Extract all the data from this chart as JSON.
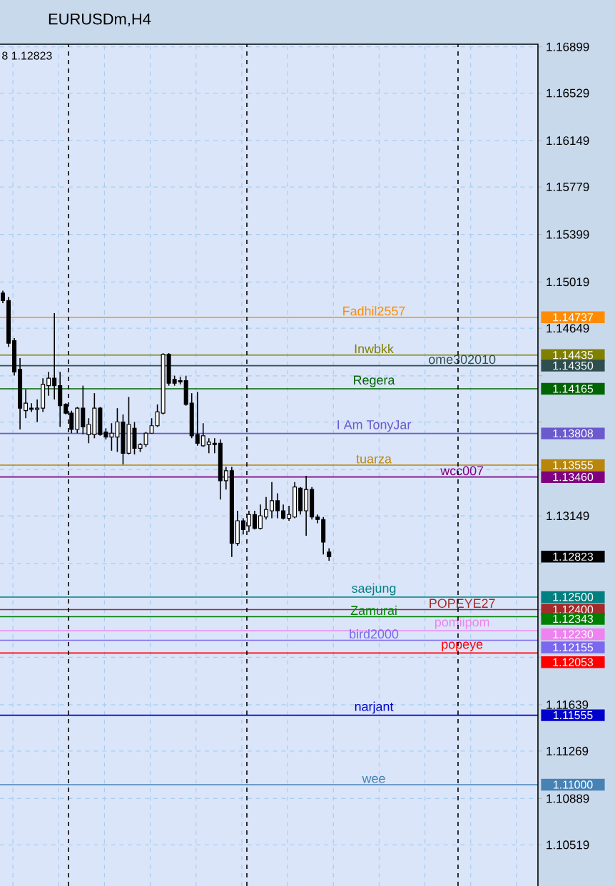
{
  "chart_data": {
    "type": "candlestick",
    "title": "EURUSDm,H4",
    "color": "#000000",
    "categories": [
      null,
      null,
      null,
      null,
      null,
      null,
      null,
      null,
      null,
      null,
      null,
      null,
      null,
      null,
      null,
      null,
      null,
      null,
      null,
      null,
      null,
      null,
      null,
      null,
      null,
      null,
      null,
      null,
      null,
      null,
      null,
      null,
      null,
      null,
      null,
      null,
      null,
      null,
      null,
      null,
      null,
      null,
      null,
      null,
      null,
      null,
      null,
      null,
      null,
      null,
      null,
      null,
      null,
      null,
      null,
      null,
      null,
      null,
      null,
      null,
      null,
      null,
      null,
      null,
      null,
      null,
      null,
      null,
      null,
      null,
      null,
      null,
      null,
      null,
      null,
      null,
      null,
      null,
      null,
      null,
      null,
      null,
      null,
      null,
      null,
      null,
      null,
      null,
      null,
      null,
      null,
      null,
      null,
      null
    ],
    "ohlc": [
      [
        1.1493,
        1.1495,
        1.1485,
        1.1487
      ],
      [
        1.1487,
        1.149,
        1.145,
        1.1453
      ],
      [
        1.1455,
        1.1457,
        1.1427,
        1.143
      ],
      [
        1.1432,
        1.1441,
        1.1384,
        1.1401
      ],
      [
        1.1399,
        1.1416,
        1.1393,
        1.1405
      ],
      [
        1.1401,
        1.1405,
        1.1398,
        1.14
      ],
      [
        1.14,
        1.1408,
        1.139,
        1.1401
      ],
      [
        1.1401,
        1.1425,
        1.1398,
        1.142
      ],
      [
        1.1419,
        1.143,
        1.1411,
        1.1425
      ],
      [
        1.1425,
        1.1477,
        1.1408,
        1.1419
      ],
      [
        1.1419,
        1.143,
        1.1386,
        1.1403
      ],
      [
        1.1404,
        1.1405,
        1.1396,
        1.1397
      ],
      [
        1.1397,
        1.1399,
        1.1381,
        1.1384
      ],
      [
        1.1384,
        1.1402,
        1.1381,
        1.1401
      ],
      [
        1.1401,
        1.1419,
        1.138,
        1.1386
      ],
      [
        1.138,
        1.1393,
        1.1373,
        1.1388
      ],
      [
        1.138,
        1.1413,
        1.1377,
        1.1401
      ],
      [
        1.1401,
        1.1402,
        1.1379,
        1.138
      ],
      [
        1.1382,
        1.1385,
        1.1376,
        1.1378
      ],
      [
        1.1378,
        1.1389,
        1.1367,
        1.1381
      ],
      [
        1.1378,
        1.1401,
        1.1366,
        1.139
      ],
      [
        1.139,
        1.1396,
        1.1356,
        1.1365
      ],
      [
        1.1365,
        1.141,
        1.1364,
        1.1388
      ],
      [
        1.1385,
        1.139,
        1.1364,
        1.1369
      ],
      [
        1.1369,
        1.1373,
        1.1366,
        1.1372
      ],
      [
        1.1372,
        1.1382,
        1.137,
        1.1381
      ],
      [
        1.1381,
        1.1393,
        1.1381,
        1.1387
      ],
      [
        1.1387,
        1.1404,
        1.1386,
        1.1398
      ],
      [
        1.1397,
        1.1445,
        1.1396,
        1.1444
      ],
      [
        1.1444,
        1.1445,
        1.1419,
        1.1421
      ],
      [
        1.1424,
        1.1427,
        1.1419,
        1.1421
      ],
      [
        1.1423,
        1.1426,
        1.142,
        1.1422
      ],
      [
        1.1423,
        1.1427,
        1.1403,
        1.1404
      ],
      [
        1.1405,
        1.1413,
        1.1377,
        1.1379
      ],
      [
        1.138,
        1.1414,
        1.1371,
        1.1373
      ],
      [
        1.1371,
        1.1389,
        1.137,
        1.1379
      ],
      [
        1.1372,
        1.1377,
        1.1365,
        1.1374
      ],
      [
        1.1373,
        1.1377,
        1.1365,
        1.1372
      ],
      [
        1.1373,
        1.1376,
        1.1328,
        1.1343
      ],
      [
        1.1343,
        1.1354,
        1.1336,
        1.1351
      ],
      [
        1.1351,
        1.1354,
        1.1282,
        1.1293
      ],
      [
        1.1293,
        1.1319,
        1.1291,
        1.1311
      ],
      [
        1.1311,
        1.1313,
        1.13,
        1.1304
      ],
      [
        1.1307,
        1.1319,
        1.1302,
        1.1316
      ],
      [
        1.1316,
        1.1319,
        1.1304,
        1.1305
      ],
      [
        1.1305,
        1.1324,
        1.1304,
        1.1315
      ],
      [
        1.1314,
        1.133,
        1.1312,
        1.132
      ],
      [
        1.1319,
        1.1342,
        1.1313,
        1.1327
      ],
      [
        1.1327,
        1.1333,
        1.1313,
        1.1319
      ],
      [
        1.1319,
        1.1324,
        1.1312,
        1.1313
      ],
      [
        1.1313,
        1.1323,
        1.1311,
        1.1316
      ],
      [
        1.1314,
        1.1342,
        1.1313,
        1.1338
      ],
      [
        1.1337,
        1.1338,
        1.1316,
        1.1319
      ],
      [
        1.1319,
        1.1347,
        1.1299,
        1.1336
      ],
      [
        1.1336,
        1.1338,
        1.1312,
        1.1314
      ],
      [
        1.1314,
        1.1316,
        1.1309,
        1.1312
      ],
      [
        1.1312,
        1.1314,
        1.1284,
        1.1294
      ],
      [
        1.1286,
        1.1289,
        1.1279,
        1.12823
      ],
      null,
      null,
      null,
      null,
      null,
      null,
      null,
      null,
      null,
      null,
      null,
      null,
      null,
      null,
      null,
      null,
      null,
      null,
      null,
      null,
      null,
      null,
      null,
      null,
      null,
      null,
      null,
      null,
      null,
      null,
      null,
      null,
      null,
      null,
      null,
      null
    ],
    "ylim": [
      1.1019,
      1.1692
    ],
    "yticks": [
      1.16899,
      1.16529,
      1.16149,
      1.15779,
      1.15399,
      1.15019,
      1.14649,
      {
        "value": 1.14269,
        "label": null
      },
      {
        "value": 1.13899,
        "label": null
      },
      {
        "value": 1.13519,
        "label": null
      },
      1.13149,
      {
        "value": 1.12769,
        "label": null
      },
      {
        "value": 1.12399,
        "label": null
      },
      {
        "value": 1.12019,
        "label": null
      },
      1.11639,
      1.11269,
      1.10889,
      1.10519
    ],
    "grid": true,
    "tick_labels": "y",
    "ref_lines": [
      {
        "axis": "y",
        "value": 1.14737,
        "label": "Fadhil2557",
        "color": "#ff8c00"
      },
      {
        "axis": "y",
        "value": 1.14435,
        "label": "Inwbkk",
        "color": "#808000"
      },
      {
        "axis": "y",
        "value": 1.1435,
        "label": "ome302010",
        "color": "#2f4f4f"
      },
      {
        "axis": "y",
        "value": 1.14165,
        "label": "Regera",
        "color": "#006400"
      },
      {
        "axis": "y",
        "value": 1.13808,
        "label": "I Am TonyJar",
        "color": "#6a5acd"
      },
      {
        "axis": "y",
        "value": 1.13555,
        "label": "tuarza",
        "color": "#b8860b"
      },
      {
        "axis": "y",
        "value": 1.1346,
        "label": "wcc007",
        "color": "#800080"
      },
      {
        "axis": "y",
        "value": 1.125,
        "label": "saejung",
        "color": "#008080"
      },
      {
        "axis": "y",
        "value": 1.124,
        "label": "POPEYE27",
        "color": "#a52a2a"
      },
      {
        "axis": "y",
        "value": 1.12343,
        "label": "Zamurai",
        "color": "#008000"
      },
      {
        "axis": "y",
        "value": 1.1223,
        "label": "pomiipom",
        "color": "#ee82ee"
      },
      {
        "axis": "y",
        "value": 1.12155,
        "label": "bird2000",
        "color": "#7b68ee"
      },
      {
        "axis": "y",
        "value": 1.12053,
        "label": "popeye",
        "color": "#ff0000"
      },
      {
        "axis": "y",
        "value": 1.11555,
        "label": "narjant",
        "color": "#0000cd"
      },
      {
        "axis": "y",
        "value": 1.11,
        "label": "wee",
        "color": "#4682b4"
      }
    ],
    "y2lim": [
      1.1019,
      1.1692
    ],
    "y2ticks": [
      1.14737,
      1.14435,
      {
        "value": 1.1435,
        "label": "1.14350"
      },
      1.14165,
      1.13808,
      1.13555,
      {
        "value": 1.1346,
        "label": "1.13460"
      },
      1.12823,
      {
        "value": 1.125,
        "label": "1.12500"
      },
      {
        "value": 1.124,
        "label": "1.12400"
      },
      1.12343,
      {
        "value": 1.1223,
        "label": "1.12230"
      },
      1.12155,
      1.12053,
      1.11555,
      {
        "value": 1.11,
        "label": "1.11000"
      }
    ],
    "annotations": [
      "8 1.12823"
    ]
  }
}
